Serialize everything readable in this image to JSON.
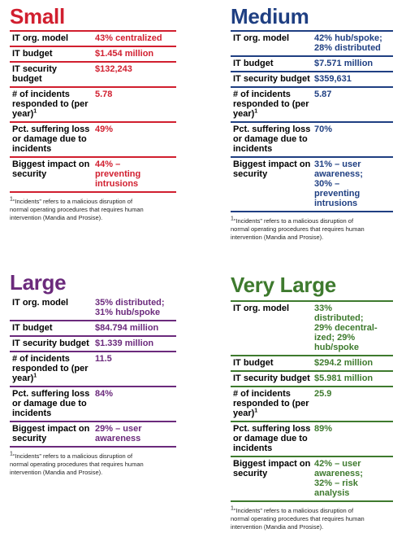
{
  "colors": {
    "small": "#d11f2f",
    "medium": "#1f3f82",
    "large": "#6b2a7c",
    "very_large": "#3e7a2e"
  },
  "labels": {
    "org_model": "IT org. model",
    "budget": "IT budget",
    "security_budget_short": "IT security budget",
    "incidents": "# of incidents responded to (per year)",
    "incidents_sup": "1",
    "loss": "Pct. suffering loss or damage due to incidents",
    "impact": "Biggest impact on security"
  },
  "footnote": {
    "sup": "1",
    "text": "“Incidents” refers to a malicious disruption of normal operating procedures that requires human intervention (Mandia and Prosise)."
  },
  "small": {
    "title": "Small",
    "org_model": "43% centralized",
    "budget": "$1.454 million",
    "security_budget": "$132,243",
    "incidents": "5.78",
    "loss": "49%",
    "impact": "44% – preventing intrusions"
  },
  "medium": {
    "title": "Medium",
    "org_model": "42% hub/spoke; 28% distributed",
    "budget": "$7.571 million",
    "security_budget": "$359,631",
    "incidents": "5.87",
    "loss": "70%",
    "impact_line1": "31% – user awareness;",
    "impact_line2": "30% – preventing intrusions"
  },
  "large": {
    "title": "Large",
    "org_model": "35% distributed; 31% hub/spoke",
    "budget": "$84.794 million",
    "security_budget": "$1.339 million",
    "incidents": "11.5",
    "loss": "84%",
    "impact": "29% – user awareness"
  },
  "very_large": {
    "title": "Very Large",
    "org_model": "33% distributed; 29% decentral-ized; 29% hub/spoke",
    "budget": "$294.2 million",
    "security_budget": "$5.981 million",
    "incidents": "25.9",
    "loss": "89%",
    "impact": "42% – user awareness; 32% – risk analysis"
  }
}
